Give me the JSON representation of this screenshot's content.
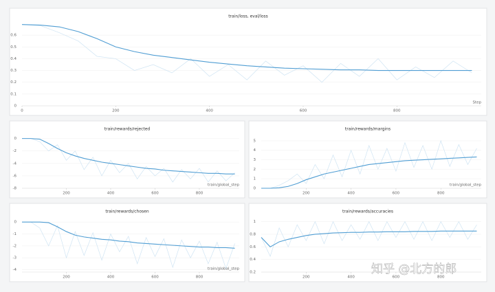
{
  "chart_data": [
    {
      "type": "line",
      "title": "train/loss, eval/loss",
      "x_label": "Step",
      "x": [
        0,
        40,
        80,
        120,
        160,
        200,
        240,
        280,
        320,
        360,
        400,
        440,
        480,
        520,
        560,
        600,
        640,
        680,
        720,
        760,
        800,
        840,
        880,
        920,
        960
      ],
      "series": [
        {
          "color": "#cfe4f3",
          "values": [
            0.69,
            0.68,
            0.62,
            0.55,
            0.42,
            0.4,
            0.3,
            0.35,
            0.28,
            0.4,
            0.25,
            0.35,
            0.22,
            0.38,
            0.26,
            0.34,
            0.2,
            0.36,
            0.25,
            0.4,
            0.22,
            0.33,
            0.24,
            0.38,
            0.28
          ]
        },
        {
          "color": "#4f9dd3",
          "values": [
            0.69,
            0.685,
            0.67,
            0.63,
            0.57,
            0.5,
            0.46,
            0.43,
            0.41,
            0.39,
            0.37,
            0.355,
            0.34,
            0.33,
            0.32,
            0.315,
            0.31,
            0.305,
            0.305,
            0.3,
            0.3,
            0.3,
            0.3,
            0.3,
            0.3
          ]
        }
      ],
      "xlim": [
        0,
        980
      ],
      "xticks": [
        0,
        200,
        400,
        600,
        800
      ],
      "ylim": [
        0,
        0.7
      ],
      "yticks": [
        0,
        0.1,
        0.2,
        0.3,
        0.4,
        0.5,
        0.6
      ],
      "grid": true
    },
    {
      "type": "line",
      "title": "train/rewards/rejected",
      "x_label": "train/global_step",
      "x": [
        0,
        40,
        80,
        120,
        160,
        200,
        240,
        280,
        320,
        360,
        400,
        440,
        480,
        520,
        560,
        600,
        640,
        680,
        720,
        760,
        800,
        840,
        880,
        920,
        960
      ],
      "series": [
        {
          "color": "#cfe4f3",
          "values": [
            0,
            0,
            -0.5,
            -2,
            -1,
            -3.5,
            -2,
            -5,
            -3,
            -6,
            -3.5,
            -5.5,
            -4,
            -6.5,
            -4.5,
            -6,
            -4.8,
            -7,
            -5,
            -6.5,
            -4.8,
            -7,
            -5.2,
            -6.8,
            -5.5
          ]
        },
        {
          "color": "#4f9dd3",
          "values": [
            0,
            0,
            -0.1,
            -0.8,
            -1.6,
            -2.3,
            -2.8,
            -3.2,
            -3.5,
            -3.8,
            -4,
            -4.2,
            -4.4,
            -4.6,
            -4.8,
            -4.9,
            -5.1,
            -5.2,
            -5.3,
            -5.4,
            -5.5,
            -5.6,
            -5.6,
            -5.7,
            -5.7
          ]
        }
      ],
      "xlim": [
        0,
        980
      ],
      "xticks": [
        200,
        400,
        600,
        800
      ],
      "ylim": [
        -8,
        0.4
      ],
      "yticks": [
        0,
        -2,
        -4,
        -6,
        -8
      ],
      "grid": true
    },
    {
      "type": "line",
      "title": "train/rewards/margins",
      "x_label": "train/global_step",
      "x": [
        0,
        40,
        80,
        120,
        160,
        200,
        240,
        280,
        320,
        360,
        400,
        440,
        480,
        520,
        560,
        600,
        640,
        680,
        720,
        760,
        800,
        840,
        880,
        920,
        960
      ],
      "series": [
        {
          "color": "#cfe4f3",
          "values": [
            0,
            0,
            0.3,
            0.8,
            1.5,
            0.5,
            2.5,
            1,
            3.5,
            1.2,
            4,
            1.5,
            4.5,
            2,
            4.2,
            1.8,
            4.8,
            2.2,
            4.5,
            2,
            5,
            2.3,
            4.6,
            2.5,
            4.2
          ]
        },
        {
          "color": "#4f9dd3",
          "values": [
            0,
            0,
            0.05,
            0.2,
            0.5,
            0.9,
            1.2,
            1.5,
            1.7,
            1.9,
            2.1,
            2.3,
            2.5,
            2.6,
            2.7,
            2.8,
            2.9,
            2.95,
            3,
            3.05,
            3.1,
            3.15,
            3.2,
            3.25,
            3.3
          ]
        }
      ],
      "xlim": [
        0,
        980
      ],
      "xticks": [
        200,
        400,
        600,
        800
      ],
      "ylim": [
        0,
        5.5
      ],
      "yticks": [
        0,
        1,
        2,
        3,
        4,
        5
      ],
      "grid": true
    },
    {
      "type": "line",
      "title": "train/rewards/chosen",
      "x_label": "train/global_step",
      "x": [
        0,
        40,
        80,
        120,
        160,
        200,
        240,
        280,
        320,
        360,
        400,
        440,
        480,
        520,
        560,
        600,
        640,
        680,
        720,
        760,
        800,
        840,
        880,
        920,
        960
      ],
      "series": [
        {
          "color": "#cfe4f3",
          "values": [
            0,
            0,
            -0.5,
            -2,
            -0.3,
            -3,
            -0.8,
            -2.8,
            -0.9,
            -3.2,
            -1,
            -2.5,
            -1.2,
            -3.5,
            -1.3,
            -2.9,
            -1.4,
            -3.8,
            -1.5,
            -3,
            -1.6,
            -3.5,
            -1.7,
            -3.9,
            -1.8
          ]
        },
        {
          "color": "#4f9dd3",
          "values": [
            0,
            0,
            0,
            -0.05,
            -0.4,
            -0.8,
            -1.1,
            -1.25,
            -1.35,
            -1.45,
            -1.5,
            -1.6,
            -1.65,
            -1.75,
            -1.8,
            -1.85,
            -1.9,
            -1.95,
            -2,
            -2.05,
            -2.1,
            -2.1,
            -2.15,
            -2.15,
            -2.2
          ]
        }
      ],
      "xlim": [
        0,
        980
      ],
      "xticks": [
        200,
        400,
        600,
        800
      ],
      "ylim": [
        -4.2,
        0.3
      ],
      "yticks": [
        0,
        -1,
        -2,
        -3,
        -4
      ],
      "grid": true
    },
    {
      "type": "line",
      "title": "train/rewards/accuracies",
      "x": [
        0,
        40,
        80,
        120,
        160,
        200,
        240,
        280,
        320,
        360,
        400,
        440,
        480,
        520,
        560,
        600,
        640,
        680,
        720,
        760,
        800,
        840,
        880,
        920,
        960
      ],
      "series": [
        {
          "color": "#cfe4f3",
          "values": [
            0.75,
            0.45,
            0.9,
            0.6,
            0.95,
            0.7,
            1,
            0.65,
            1,
            0.7,
            0.95,
            0.72,
            1,
            0.7,
            1,
            0.75,
            1,
            0.72,
            1,
            0.7,
            1,
            0.75,
            1,
            0.72,
            0.95
          ]
        },
        {
          "color": "#4f9dd3",
          "values": [
            0.75,
            0.6,
            0.68,
            0.72,
            0.75,
            0.78,
            0.8,
            0.81,
            0.82,
            0.825,
            0.83,
            0.83,
            0.835,
            0.835,
            0.84,
            0.84,
            0.84,
            0.845,
            0.845,
            0.845,
            0.85,
            0.85,
            0.85,
            0.85,
            0.85
          ]
        }
      ],
      "xlim": [
        0,
        980
      ],
      "xticks": [
        200,
        400,
        600,
        800
      ],
      "ylim": [
        0.2,
        1.05
      ],
      "yticks": [
        0.2,
        0.4,
        0.6,
        0.8,
        1
      ],
      "grid": true
    }
  ],
  "watermark": "知乎 @北方的郎"
}
